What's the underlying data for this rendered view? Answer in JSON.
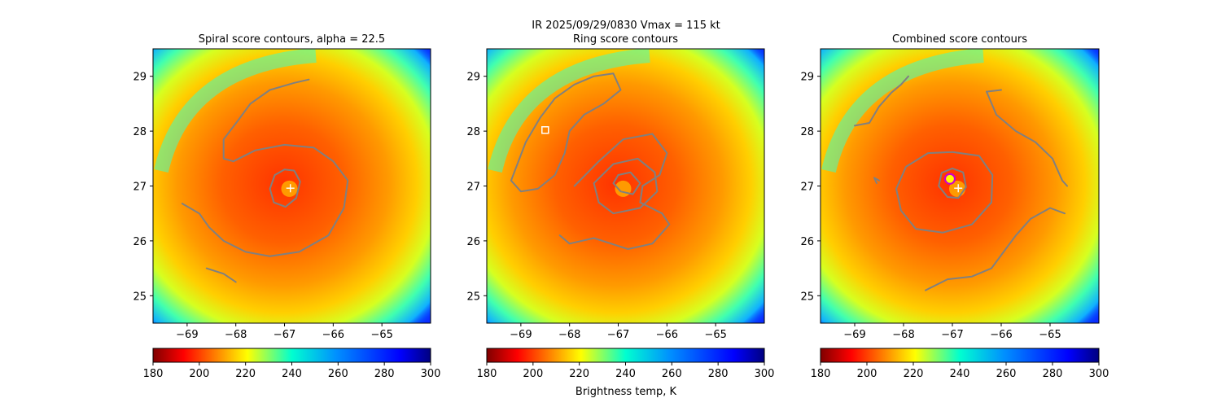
{
  "figure": {
    "suptitle_line1": "IR  2025/09/29/0830    Vmax = 115 kt",
    "colorbar_label": "Brightness temp, K"
  },
  "chart_data": [
    {
      "type": "heatmap",
      "title": "Spiral score contours, alpha = 22.5",
      "xlabel": "",
      "ylabel": "",
      "xlim": [
        -69.7,
        -64.0
      ],
      "ylim": [
        24.5,
        29.5
      ],
      "xticks": [
        -69,
        -68,
        -67,
        -66,
        -65
      ],
      "yticks": [
        25,
        26,
        27,
        28,
        29
      ],
      "center": {
        "lon": -66.9,
        "lat": 26.95
      },
      "marker": {
        "type": "plus",
        "lon": -66.88,
        "lat": 26.96,
        "color": "#ffffff"
      },
      "colorbar": {
        "min": 180,
        "max": 300,
        "ticks": [
          180,
          200,
          220,
          240,
          260,
          280,
          300
        ],
        "cmap": "jet_r"
      },
      "contour_color": "#808080",
      "contours": [
        {
          "name": "",
          "points": [
            [
              -67.0,
              27.3
            ],
            [
              -66.8,
              27.28
            ],
            [
              -66.68,
              27.08
            ],
            [
              -66.76,
              26.78
            ],
            [
              -66.98,
              26.62
            ],
            [
              -67.22,
              26.7
            ],
            [
              -67.3,
              26.95
            ],
            [
              -67.2,
              27.2
            ],
            [
              -67.0,
              27.3
            ]
          ]
        },
        {
          "name": "",
          "points": [
            [
              -68.05,
              27.45
            ],
            [
              -67.6,
              27.65
            ],
            [
              -67.0,
              27.75
            ],
            [
              -66.4,
              27.7
            ],
            [
              -66.0,
              27.45
            ],
            [
              -65.7,
              27.1
            ],
            [
              -65.78,
              26.6
            ],
            [
              -66.1,
              26.1
            ],
            [
              -66.7,
              25.8
            ],
            [
              -67.3,
              25.72
            ],
            [
              -67.8,
              25.8
            ],
            [
              -68.25,
              26.0
            ],
            [
              -68.55,
              26.25
            ],
            [
              -68.75,
              26.5
            ],
            [
              -69.1,
              26.68
            ]
          ]
        },
        {
          "name": "",
          "points": [
            [
              -68.05,
              27.45
            ],
            [
              -68.25,
              27.5
            ],
            [
              -68.25,
              27.85
            ],
            [
              -67.95,
              28.2
            ],
            [
              -67.7,
              28.5
            ],
            [
              -67.3,
              28.75
            ],
            [
              -66.8,
              28.88
            ],
            [
              -66.5,
              28.94
            ]
          ]
        },
        {
          "name": "",
          "points": [
            [
              -68.6,
              25.5
            ],
            [
              -68.25,
              25.4
            ],
            [
              -68.0,
              25.25
            ]
          ]
        }
      ]
    },
    {
      "type": "heatmap",
      "title": "Ring score contours",
      "xlabel": "",
      "ylabel": "",
      "xlim": [
        -69.7,
        -64.0
      ],
      "ylim": [
        24.5,
        29.5
      ],
      "xticks": [
        -69,
        -68,
        -67,
        -66,
        -65
      ],
      "yticks": [
        25,
        26,
        27,
        28,
        29
      ],
      "center": {
        "lon": -66.9,
        "lat": 26.95
      },
      "marker": {
        "type": "square",
        "lon": -68.5,
        "lat": 28.02,
        "color": "#ffffff"
      },
      "colorbar": {
        "min": 180,
        "max": 300,
        "ticks": [
          180,
          200,
          220,
          240,
          260,
          280,
          300
        ],
        "cmap": "jet_r"
      },
      "contour_color": "#808080",
      "contours": [
        {
          "name": "",
          "points": [
            [
              -69.2,
              27.1
            ],
            [
              -68.9,
              27.8
            ],
            [
              -68.6,
              28.25
            ],
            [
              -68.3,
              28.6
            ],
            [
              -67.9,
              28.85
            ],
            [
              -67.5,
              29.0
            ],
            [
              -67.1,
              29.05
            ],
            [
              -66.95,
              28.75
            ],
            [
              -67.3,
              28.5
            ],
            [
              -67.7,
              28.3
            ],
            [
              -68.0,
              28.0
            ],
            [
              -68.1,
              27.6
            ],
            [
              -68.3,
              27.2
            ],
            [
              -68.65,
              26.95
            ],
            [
              -69.0,
              26.9
            ],
            [
              -69.2,
              27.1
            ]
          ]
        },
        {
          "name": "",
          "points": [
            [
              -67.9,
              27.0
            ],
            [
              -67.4,
              27.45
            ],
            [
              -66.9,
              27.85
            ],
            [
              -66.3,
              27.95
            ],
            [
              -66.0,
              27.6
            ],
            [
              -66.15,
              27.2
            ],
            [
              -66.5,
              27.0
            ],
            [
              -66.55,
              26.7
            ],
            [
              -66.1,
              26.5
            ],
            [
              -65.95,
              26.3
            ],
            [
              -66.3,
              25.95
            ],
            [
              -66.8,
              25.85
            ],
            [
              -67.5,
              26.05
            ],
            [
              -68.0,
              25.95
            ],
            [
              -68.2,
              26.1
            ]
          ]
        },
        {
          "name": "",
          "points": [
            [
              -67.0,
              27.2
            ],
            [
              -66.75,
              27.25
            ],
            [
              -66.55,
              27.05
            ],
            [
              -66.7,
              26.85
            ],
            [
              -66.95,
              26.9
            ],
            [
              -67.1,
              27.05
            ],
            [
              -67.0,
              27.2
            ]
          ]
        },
        {
          "name": "",
          "points": [
            [
              -67.1,
              27.4
            ],
            [
              -66.6,
              27.5
            ],
            [
              -66.25,
              27.25
            ],
            [
              -66.2,
              26.9
            ],
            [
              -66.55,
              26.6
            ],
            [
              -67.1,
              26.5
            ],
            [
              -67.4,
              26.7
            ],
            [
              -67.5,
              27.05
            ],
            [
              -67.1,
              27.4
            ]
          ]
        }
      ]
    },
    {
      "type": "heatmap",
      "title": "Combined score contours",
      "xlabel": "",
      "ylabel": "",
      "xlim": [
        -69.7,
        -64.0
      ],
      "ylim": [
        24.5,
        29.5
      ],
      "xticks": [
        -69,
        -68,
        -67,
        -66,
        -65
      ],
      "yticks": [
        25,
        26,
        27,
        28,
        29
      ],
      "center": {
        "lon": -66.9,
        "lat": 26.95
      },
      "marker": {
        "type": "plus",
        "lon": -66.88,
        "lat": 26.96,
        "color": "#ffffff"
      },
      "marker2": {
        "type": "circle",
        "lon": -67.05,
        "lat": 27.13,
        "color": "#ffff00",
        "edge": "#cc00cc"
      },
      "colorbar": {
        "min": 180,
        "max": 300,
        "ticks": [
          180,
          200,
          220,
          240,
          260,
          280,
          300
        ],
        "cmap": "jet_r"
      },
      "contour_color": "#808080",
      "contours": [
        {
          "name": "",
          "points": [
            [
              -67.0,
              27.32
            ],
            [
              -66.78,
              27.25
            ],
            [
              -66.72,
              26.98
            ],
            [
              -66.88,
              26.78
            ],
            [
              -67.1,
              26.8
            ],
            [
              -67.28,
              27.0
            ],
            [
              -67.22,
              27.24
            ],
            [
              -67.0,
              27.32
            ]
          ]
        },
        {
          "name": "",
          "points": [
            [
              -67.0,
              27.62
            ],
            [
              -66.45,
              27.55
            ],
            [
              -66.18,
              27.2
            ],
            [
              -66.2,
              26.7
            ],
            [
              -66.6,
              26.3
            ],
            [
              -67.2,
              26.15
            ],
            [
              -67.75,
              26.22
            ],
            [
              -68.05,
              26.55
            ],
            [
              -68.15,
              26.95
            ],
            [
              -67.95,
              27.35
            ],
            [
              -67.5,
              27.6
            ],
            [
              -67.0,
              27.62
            ]
          ]
        },
        {
          "name": "",
          "points": [
            [
              -68.55,
              27.05
            ],
            [
              -68.6,
              27.15
            ],
            [
              -68.5,
              27.1
            ]
          ]
        },
        {
          "name": "",
          "points": [
            [
              -69.0,
              28.1
            ],
            [
              -68.7,
              28.15
            ],
            [
              -68.5,
              28.45
            ],
            [
              -68.25,
              28.7
            ],
            [
              -68.05,
              28.85
            ],
            [
              -67.9,
              29.0
            ]
          ]
        },
        {
          "name": "",
          "points": [
            [
              -66.3,
              28.72
            ],
            [
              -66.0,
              28.75
            ]
          ]
        },
        {
          "name": "",
          "points": [
            [
              -66.3,
              28.72
            ],
            [
              -66.1,
              28.3
            ],
            [
              -65.7,
              28.0
            ],
            [
              -65.3,
              27.8
            ],
            [
              -64.95,
              27.5
            ],
            [
              -64.75,
              27.1
            ],
            [
              -64.65,
              27.0
            ]
          ]
        },
        {
          "name": "",
          "points": [
            [
              -67.55,
              25.1
            ],
            [
              -67.1,
              25.3
            ],
            [
              -66.6,
              25.35
            ],
            [
              -66.2,
              25.5
            ],
            [
              -65.95,
              25.8
            ],
            [
              -65.7,
              26.1
            ],
            [
              -65.4,
              26.4
            ],
            [
              -65.0,
              26.6
            ],
            [
              -64.7,
              26.5
            ]
          ]
        }
      ]
    }
  ]
}
